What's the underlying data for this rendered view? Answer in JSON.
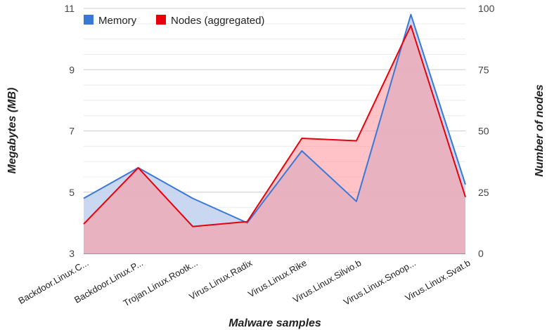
{
  "chart_data": {
    "type": "area",
    "categories": [
      "Backdoor.Linux.C...",
      "Backdoor.Linux.P...",
      "Trojan.Linux.Rootk...",
      "Virus.Linux.Radix",
      "Virus.Linux.Rike",
      "Virus.Linux.Silvio.b",
      "Virus.Linux.Snoop...",
      "Virus.Linux.Svat.b"
    ],
    "series": [
      {
        "name": "Memory",
        "axis": "left",
        "color": "#3a78d8",
        "fill": "#c3d3f0",
        "values": [
          4.8,
          5.8,
          4.8,
          4.0,
          6.35,
          4.7,
          10.8,
          5.25
        ]
      },
      {
        "name": "Nodes (aggregated)",
        "axis": "right",
        "color": "#e8000b",
        "fill": "#ff9aa0",
        "values": [
          12,
          35,
          11,
          13,
          47,
          46,
          93,
          23
        ]
      }
    ],
    "xlabel": "Malware samples",
    "ylabel": "Megabytes (MB)",
    "y2label": "Number of nodes",
    "ylim": [
      3,
      11
    ],
    "yticks": [
      3,
      5,
      7,
      9,
      11
    ],
    "y2lim": [
      0,
      100
    ],
    "y2ticks": [
      0,
      25,
      50,
      75,
      100
    ],
    "grid": true,
    "legend_position": "top-left"
  }
}
